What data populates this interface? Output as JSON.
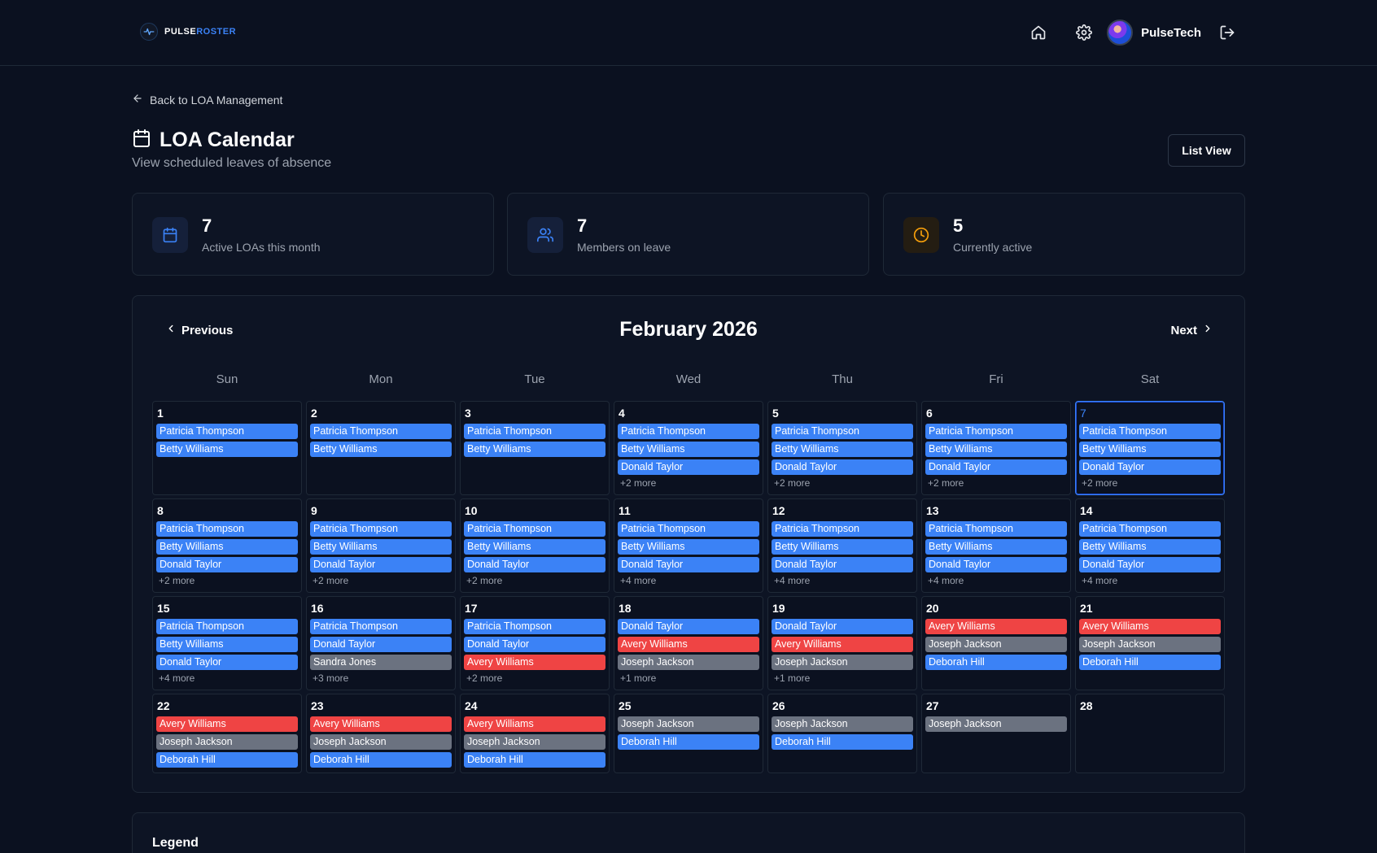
{
  "brand": {
    "name_a": "PULSE",
    "name_b": "ROSTER"
  },
  "header": {
    "username": "PulseTech"
  },
  "back_link": "Back to LOA Management",
  "page": {
    "title": "LOA Calendar",
    "subtitle": "View scheduled leaves of absence",
    "list_view_label": "List View"
  },
  "stats": [
    {
      "value": "7",
      "label": "Active LOAs this month",
      "icon": "calendar-icon",
      "color": "#3b82f6"
    },
    {
      "value": "7",
      "label": "Members on leave",
      "icon": "users-icon",
      "color": "#3b82f6"
    },
    {
      "value": "5",
      "label": "Currently active",
      "icon": "clock-icon",
      "color": "#f59e0b"
    }
  ],
  "calendar": {
    "month": "February 2026",
    "prev_label": "Previous",
    "next_label": "Next",
    "weekdays": [
      "Sun",
      "Mon",
      "Tue",
      "Wed",
      "Thu",
      "Fri",
      "Sat"
    ],
    "colors": {
      "blue": "#3b82f6",
      "red": "#ef4444",
      "gray": "#6b7280"
    },
    "today": "7",
    "days": [
      {
        "num": "1",
        "events": [
          {
            "name": "Patricia Thompson",
            "color": "blue"
          },
          {
            "name": "Betty Williams",
            "color": "blue"
          }
        ],
        "more": ""
      },
      {
        "num": "2",
        "events": [
          {
            "name": "Patricia Thompson",
            "color": "blue"
          },
          {
            "name": "Betty Williams",
            "color": "blue"
          }
        ],
        "more": ""
      },
      {
        "num": "3",
        "events": [
          {
            "name": "Patricia Thompson",
            "color": "blue"
          },
          {
            "name": "Betty Williams",
            "color": "blue"
          }
        ],
        "more": ""
      },
      {
        "num": "4",
        "events": [
          {
            "name": "Patricia Thompson",
            "color": "blue"
          },
          {
            "name": "Betty Williams",
            "color": "blue"
          },
          {
            "name": "Donald Taylor",
            "color": "blue"
          }
        ],
        "more": "+2 more"
      },
      {
        "num": "5",
        "events": [
          {
            "name": "Patricia Thompson",
            "color": "blue"
          },
          {
            "name": "Betty Williams",
            "color": "blue"
          },
          {
            "name": "Donald Taylor",
            "color": "blue"
          }
        ],
        "more": "+2 more"
      },
      {
        "num": "6",
        "events": [
          {
            "name": "Patricia Thompson",
            "color": "blue"
          },
          {
            "name": "Betty Williams",
            "color": "blue"
          },
          {
            "name": "Donald Taylor",
            "color": "blue"
          }
        ],
        "more": "+2 more"
      },
      {
        "num": "7",
        "events": [
          {
            "name": "Patricia Thompson",
            "color": "blue"
          },
          {
            "name": "Betty Williams",
            "color": "blue"
          },
          {
            "name": "Donald Taylor",
            "color": "blue"
          }
        ],
        "more": "+2 more"
      },
      {
        "num": "8",
        "events": [
          {
            "name": "Patricia Thompson",
            "color": "blue"
          },
          {
            "name": "Betty Williams",
            "color": "blue"
          },
          {
            "name": "Donald Taylor",
            "color": "blue"
          }
        ],
        "more": "+2 more"
      },
      {
        "num": "9",
        "events": [
          {
            "name": "Patricia Thompson",
            "color": "blue"
          },
          {
            "name": "Betty Williams",
            "color": "blue"
          },
          {
            "name": "Donald Taylor",
            "color": "blue"
          }
        ],
        "more": "+2 more"
      },
      {
        "num": "10",
        "events": [
          {
            "name": "Patricia Thompson",
            "color": "blue"
          },
          {
            "name": "Betty Williams",
            "color": "blue"
          },
          {
            "name": "Donald Taylor",
            "color": "blue"
          }
        ],
        "more": "+2 more"
      },
      {
        "num": "11",
        "events": [
          {
            "name": "Patricia Thompson",
            "color": "blue"
          },
          {
            "name": "Betty Williams",
            "color": "blue"
          },
          {
            "name": "Donald Taylor",
            "color": "blue"
          }
        ],
        "more": "+4 more"
      },
      {
        "num": "12",
        "events": [
          {
            "name": "Patricia Thompson",
            "color": "blue"
          },
          {
            "name": "Betty Williams",
            "color": "blue"
          },
          {
            "name": "Donald Taylor",
            "color": "blue"
          }
        ],
        "more": "+4 more"
      },
      {
        "num": "13",
        "events": [
          {
            "name": "Patricia Thompson",
            "color": "blue"
          },
          {
            "name": "Betty Williams",
            "color": "blue"
          },
          {
            "name": "Donald Taylor",
            "color": "blue"
          }
        ],
        "more": "+4 more"
      },
      {
        "num": "14",
        "events": [
          {
            "name": "Patricia Thompson",
            "color": "blue"
          },
          {
            "name": "Betty Williams",
            "color": "blue"
          },
          {
            "name": "Donald Taylor",
            "color": "blue"
          }
        ],
        "more": "+4 more"
      },
      {
        "num": "15",
        "events": [
          {
            "name": "Patricia Thompson",
            "color": "blue"
          },
          {
            "name": "Betty Williams",
            "color": "blue"
          },
          {
            "name": "Donald Taylor",
            "color": "blue"
          }
        ],
        "more": "+4 more"
      },
      {
        "num": "16",
        "events": [
          {
            "name": "Patricia Thompson",
            "color": "blue"
          },
          {
            "name": "Donald Taylor",
            "color": "blue"
          },
          {
            "name": "Sandra Jones",
            "color": "gray"
          }
        ],
        "more": "+3 more"
      },
      {
        "num": "17",
        "events": [
          {
            "name": "Patricia Thompson",
            "color": "blue"
          },
          {
            "name": "Donald Taylor",
            "color": "blue"
          },
          {
            "name": "Avery Williams",
            "color": "red"
          }
        ],
        "more": "+2 more"
      },
      {
        "num": "18",
        "events": [
          {
            "name": "Donald Taylor",
            "color": "blue"
          },
          {
            "name": "Avery Williams",
            "color": "red"
          },
          {
            "name": "Joseph Jackson",
            "color": "gray"
          }
        ],
        "more": "+1 more"
      },
      {
        "num": "19",
        "events": [
          {
            "name": "Donald Taylor",
            "color": "blue"
          },
          {
            "name": "Avery Williams",
            "color": "red"
          },
          {
            "name": "Joseph Jackson",
            "color": "gray"
          }
        ],
        "more": "+1 more"
      },
      {
        "num": "20",
        "events": [
          {
            "name": "Avery Williams",
            "color": "red"
          },
          {
            "name": "Joseph Jackson",
            "color": "gray"
          },
          {
            "name": "Deborah Hill",
            "color": "blue"
          }
        ],
        "more": ""
      },
      {
        "num": "21",
        "events": [
          {
            "name": "Avery Williams",
            "color": "red"
          },
          {
            "name": "Joseph Jackson",
            "color": "gray"
          },
          {
            "name": "Deborah Hill",
            "color": "blue"
          }
        ],
        "more": ""
      },
      {
        "num": "22",
        "events": [
          {
            "name": "Avery Williams",
            "color": "red"
          },
          {
            "name": "Joseph Jackson",
            "color": "gray"
          },
          {
            "name": "Deborah Hill",
            "color": "blue"
          }
        ],
        "more": ""
      },
      {
        "num": "23",
        "events": [
          {
            "name": "Avery Williams",
            "color": "red"
          },
          {
            "name": "Joseph Jackson",
            "color": "gray"
          },
          {
            "name": "Deborah Hill",
            "color": "blue"
          }
        ],
        "more": ""
      },
      {
        "num": "24",
        "events": [
          {
            "name": "Avery Williams",
            "color": "red"
          },
          {
            "name": "Joseph Jackson",
            "color": "gray"
          },
          {
            "name": "Deborah Hill",
            "color": "blue"
          }
        ],
        "more": ""
      },
      {
        "num": "25",
        "events": [
          {
            "name": "Joseph Jackson",
            "color": "gray"
          },
          {
            "name": "Deborah Hill",
            "color": "blue"
          }
        ],
        "more": ""
      },
      {
        "num": "26",
        "events": [
          {
            "name": "Joseph Jackson",
            "color": "gray"
          },
          {
            "name": "Deborah Hill",
            "color": "blue"
          }
        ],
        "more": ""
      },
      {
        "num": "27",
        "events": [
          {
            "name": "Joseph Jackson",
            "color": "gray"
          }
        ],
        "more": ""
      },
      {
        "num": "28",
        "events": [],
        "more": ""
      }
    ]
  },
  "legend": {
    "title": "Legend"
  }
}
